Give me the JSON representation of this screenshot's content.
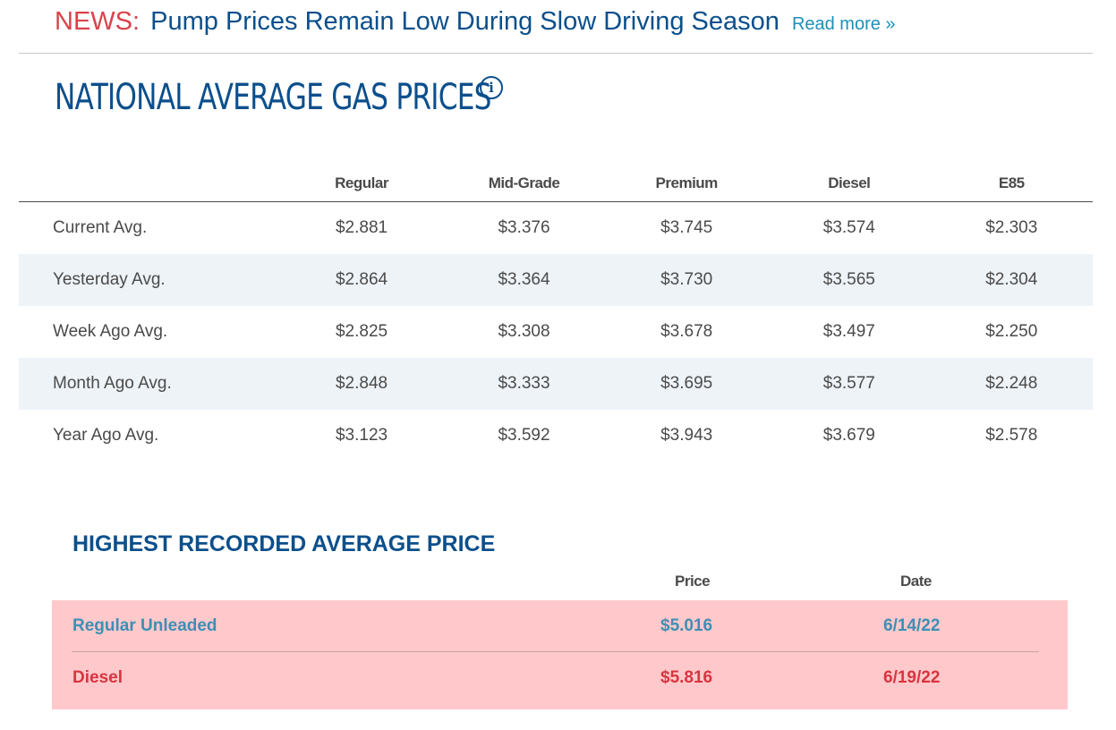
{
  "news": {
    "tag": "NEWS:",
    "headline": "Pump Prices Remain Low During Slow Driving Season",
    "read_more": "Read more »"
  },
  "title": "NATIONAL AVERAGE GAS PRICES",
  "info_icon": "info-icon",
  "table": {
    "headers": [
      "Regular",
      "Mid-Grade",
      "Premium",
      "Diesel",
      "E85"
    ],
    "rows": [
      {
        "label": "Current Avg.",
        "values": [
          "$2.881",
          "$3.376",
          "$3.745",
          "$3.574",
          "$2.303"
        ]
      },
      {
        "label": "Yesterday Avg.",
        "values": [
          "$2.864",
          "$3.364",
          "$3.730",
          "$3.565",
          "$2.304"
        ]
      },
      {
        "label": "Week Ago Avg.",
        "values": [
          "$2.825",
          "$3.308",
          "$3.678",
          "$3.497",
          "$2.250"
        ]
      },
      {
        "label": "Month Ago Avg.",
        "values": [
          "$2.848",
          "$3.333",
          "$3.695",
          "$3.577",
          "$2.248"
        ]
      },
      {
        "label": "Year Ago Avg.",
        "values": [
          "$3.123",
          "$3.592",
          "$3.943",
          "$3.679",
          "$2.578"
        ]
      }
    ]
  },
  "highest": {
    "title": "HIGHEST RECORDED AVERAGE PRICE",
    "price_header": "Price",
    "date_header": "Date",
    "rows": [
      {
        "name": "Regular Unleaded",
        "price": "$5.016",
        "date": "6/14/22"
      },
      {
        "name": "Diesel",
        "price": "$5.816",
        "date": "6/19/22"
      }
    ]
  },
  "colors": {
    "brand_blue": "#0b4f8c",
    "news_red": "#d9434b",
    "link_blue": "#1c8fb8",
    "alt_row": "#eef3f8",
    "highlight_pink": "#ffc9cb"
  }
}
